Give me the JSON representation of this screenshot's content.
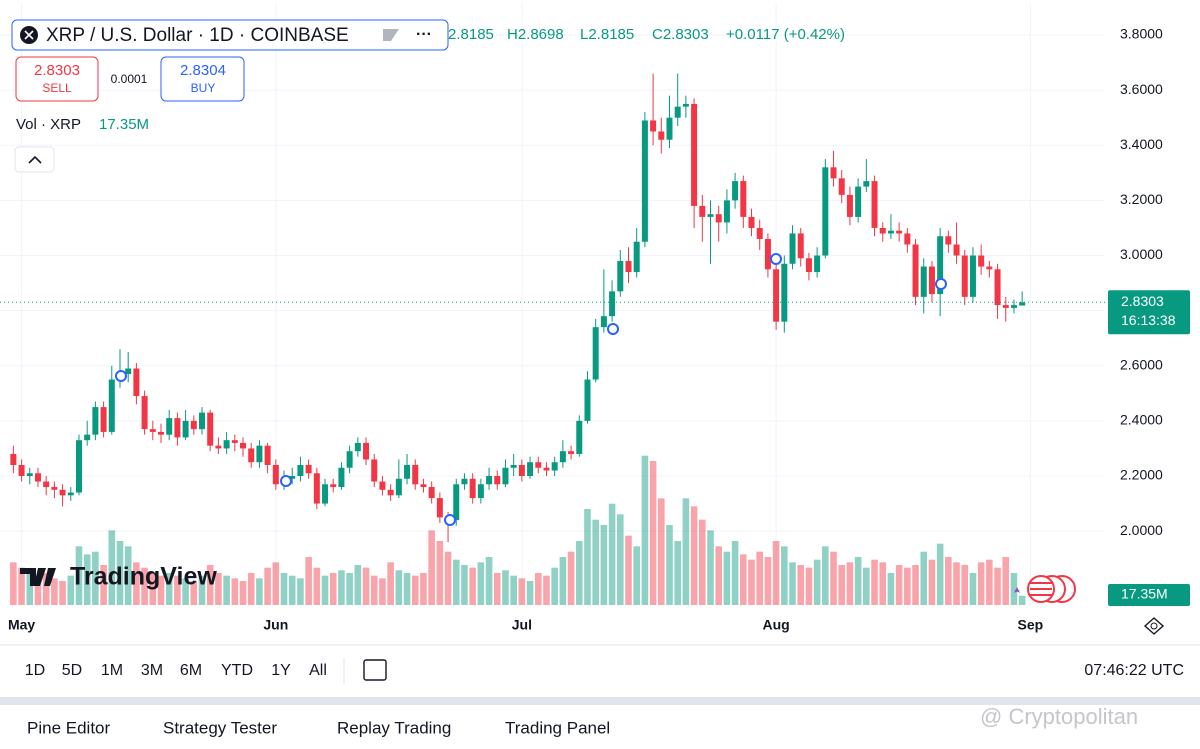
{
  "header": {
    "symbol": "XRP / U.S. Dollar · 1D · COINBASE",
    "open": "2.8185",
    "high": "H2.8698",
    "low": "L2.8185",
    "close": "C2.8303",
    "change": "+0.0117 (+0.42%)"
  },
  "trade": {
    "sell_price": "2.8303",
    "sell": "SELL",
    "spread": "0.0001",
    "buy_price": "2.8304",
    "buy": "BUY"
  },
  "volume_legend": {
    "label": "Vol · XRP",
    "value": "17.35M"
  },
  "logo": "TradingView",
  "chart_data": {
    "type": "candlestick",
    "open": [
      2.28,
      2.24,
      2.2,
      2.21,
      2.18,
      2.16,
      2.15,
      2.13,
      2.14,
      2.33,
      2.35,
      2.45,
      2.36,
      2.55,
      2.57,
      2.59,
      2.49,
      2.37,
      2.36,
      2.35,
      2.41,
      2.34,
      2.4,
      2.37,
      2.43,
      2.31,
      2.3,
      2.33,
      2.32,
      2.3,
      2.25,
      2.31,
      2.24,
      2.17,
      2.19,
      2.2,
      2.24,
      2.21,
      2.1,
      2.17,
      2.16,
      2.23,
      2.29,
      2.32,
      2.26,
      2.18,
      2.15,
      2.13,
      2.19,
      2.24,
      2.17,
      2.16,
      2.12,
      2.05,
      2.04,
      2.17,
      2.19,
      2.12,
      2.17,
      2.2,
      2.17,
      2.23,
      2.24,
      2.2,
      2.25,
      2.23,
      2.22,
      2.25,
      2.29,
      2.28,
      2.4,
      2.55,
      2.74,
      2.78,
      2.87,
      2.98,
      2.94,
      3.05,
      3.49,
      3.45,
      3.42,
      3.5,
      3.54,
      3.55,
      3.18,
      3.14,
      3.15,
      3.12,
      3.2,
      3.27,
      3.14,
      3.1,
      3.06,
      2.95,
      2.76,
      2.97,
      3.08,
      2.99,
      2.94,
      3.0,
      3.32,
      3.28,
      3.22,
      3.14,
      3.25,
      3.27,
      3.1,
      3.08,
      3.09,
      3.08,
      3.04,
      2.85,
      2.96,
      2.86,
      3.07,
      3.04,
      3.0,
      2.85,
      3.0,
      2.96,
      2.95,
      2.82,
      2.81,
      2.8185
    ],
    "high": [
      2.31,
      2.26,
      2.23,
      2.23,
      2.2,
      2.18,
      2.17,
      2.16,
      2.35,
      2.4,
      2.47,
      2.47,
      2.6,
      2.66,
      2.65,
      2.61,
      2.51,
      2.4,
      2.39,
      2.44,
      2.43,
      2.44,
      2.42,
      2.45,
      2.44,
      2.34,
      2.36,
      2.35,
      2.34,
      2.32,
      2.33,
      2.32,
      2.26,
      2.22,
      2.23,
      2.27,
      2.26,
      2.23,
      2.19,
      2.19,
      2.25,
      2.31,
      2.34,
      2.34,
      2.28,
      2.2,
      2.17,
      2.26,
      2.28,
      2.26,
      2.19,
      2.18,
      2.14,
      2.07,
      2.19,
      2.21,
      2.21,
      2.19,
      2.23,
      2.22,
      2.26,
      2.28,
      2.26,
      2.27,
      2.27,
      2.25,
      2.27,
      2.33,
      2.31,
      2.42,
      2.58,
      2.77,
      2.95,
      2.91,
      3.02,
      3.03,
      3.1,
      3.52,
      3.66,
      3.5,
      3.58,
      3.66,
      3.58,
      3.57,
      3.22,
      3.2,
      3.18,
      3.24,
      3.3,
      3.29,
      3.17,
      3.13,
      3.08,
      2.97,
      3.0,
      3.11,
      3.1,
      3.01,
      3.03,
      3.35,
      3.38,
      3.31,
      3.25,
      3.28,
      3.35,
      3.29,
      3.12,
      3.15,
      3.12,
      3.1,
      3.06,
      2.99,
      2.98,
      3.1,
      3.09,
      3.12,
      3.02,
      3.03,
      3.04,
      2.98,
      2.97,
      2.85,
      2.84,
      2.8698
    ],
    "low": [
      2.21,
      2.18,
      2.17,
      2.16,
      2.13,
      2.12,
      2.09,
      2.11,
      2.13,
      2.31,
      2.33,
      2.34,
      2.35,
      2.52,
      2.54,
      2.46,
      2.35,
      2.33,
      2.32,
      2.33,
      2.31,
      2.33,
      2.35,
      2.35,
      2.29,
      2.28,
      2.28,
      2.29,
      2.27,
      2.23,
      2.23,
      2.21,
      2.15,
      2.15,
      2.17,
      2.18,
      2.19,
      2.08,
      2.09,
      2.14,
      2.15,
      2.21,
      2.27,
      2.24,
      2.16,
      2.13,
      2.11,
      2.12,
      2.17,
      2.15,
      2.14,
      2.1,
      2.03,
      1.96,
      2.02,
      2.15,
      2.1,
      2.1,
      2.15,
      2.15,
      2.16,
      2.2,
      2.18,
      2.19,
      2.21,
      2.2,
      2.2,
      2.23,
      2.26,
      2.27,
      2.39,
      2.54,
      2.72,
      2.76,
      2.85,
      2.9,
      2.92,
      3.03,
      3.4,
      3.37,
      3.39,
      3.47,
      3.5,
      3.1,
      3.05,
      2.97,
      3.05,
      3.08,
      3.17,
      3.1,
      3.07,
      3.02,
      2.92,
      2.73,
      2.72,
      2.95,
      2.96,
      2.91,
      2.92,
      2.99,
      3.25,
      3.19,
      3.11,
      3.12,
      3.23,
      3.07,
      3.05,
      3.06,
      3.05,
      3.01,
      2.82,
      2.79,
      2.83,
      2.78,
      3.01,
      2.97,
      2.82,
      2.83,
      2.93,
      2.92,
      2.77,
      2.76,
      2.79,
      2.8185
    ],
    "close": [
      2.24,
      2.2,
      2.21,
      2.18,
      2.16,
      2.15,
      2.13,
      2.14,
      2.33,
      2.35,
      2.45,
      2.36,
      2.55,
      2.57,
      2.59,
      2.49,
      2.37,
      2.36,
      2.35,
      2.41,
      2.34,
      2.4,
      2.37,
      2.43,
      2.31,
      2.3,
      2.33,
      2.32,
      2.3,
      2.25,
      2.31,
      2.24,
      2.17,
      2.19,
      2.2,
      2.24,
      2.21,
      2.1,
      2.17,
      2.16,
      2.23,
      2.29,
      2.32,
      2.26,
      2.18,
      2.15,
      2.13,
      2.19,
      2.24,
      2.17,
      2.16,
      2.12,
      2.05,
      2.04,
      2.17,
      2.19,
      2.12,
      2.17,
      2.2,
      2.17,
      2.23,
      2.24,
      2.2,
      2.25,
      2.23,
      2.22,
      2.25,
      2.29,
      2.28,
      2.4,
      2.55,
      2.74,
      2.78,
      2.87,
      2.98,
      2.94,
      3.05,
      3.49,
      3.45,
      3.42,
      3.5,
      3.54,
      3.55,
      3.18,
      3.14,
      3.15,
      3.12,
      3.2,
      3.27,
      3.14,
      3.1,
      3.06,
      2.95,
      2.76,
      2.97,
      3.08,
      2.99,
      2.94,
      3.0,
      3.32,
      3.28,
      3.22,
      3.14,
      3.25,
      3.27,
      3.1,
      3.08,
      3.09,
      3.08,
      3.04,
      2.85,
      2.96,
      2.86,
      3.07,
      3.04,
      3.0,
      2.85,
      3.0,
      2.96,
      2.95,
      2.82,
      2.81,
      2.82,
      2.8303
    ],
    "volume": [
      80,
      70,
      60,
      55,
      60,
      50,
      45,
      55,
      110,
      95,
      100,
      75,
      140,
      120,
      110,
      80,
      70,
      60,
      55,
      60,
      55,
      50,
      45,
      55,
      75,
      60,
      55,
      50,
      45,
      60,
      50,
      70,
      80,
      60,
      55,
      50,
      90,
      70,
      55,
      60,
      65,
      60,
      75,
      70,
      55,
      50,
      80,
      65,
      60,
      55,
      60,
      140,
      120,
      100,
      85,
      75,
      70,
      80,
      90,
      60,
      65,
      55,
      50,
      45,
      60,
      55,
      70,
      90,
      100,
      120,
      180,
      160,
      150,
      190,
      170,
      130,
      110,
      280,
      270,
      200,
      150,
      120,
      200,
      185,
      160,
      140,
      110,
      100,
      120,
      95,
      85,
      100,
      90,
      120,
      110,
      80,
      75,
      70,
      85,
      110,
      100,
      75,
      80,
      90,
      70,
      85,
      80,
      60,
      75,
      70,
      75,
      100,
      85,
      115,
      90,
      80,
      75,
      60,
      80,
      85,
      70,
      90,
      60,
      17.35
    ],
    "ylim": [
      1.732,
      3.9125
    ],
    "yticks": [
      {
        "value": 2.0,
        "label": "2.0000"
      },
      {
        "value": 2.2,
        "label": "2.2000"
      },
      {
        "value": 2.4,
        "label": "2.4000"
      },
      {
        "value": 2.6,
        "label": "2.6000"
      },
      {
        "value": 2.8,
        "label": "2.8000"
      },
      {
        "value": 3.0,
        "label": "3.0000"
      },
      {
        "value": 3.2,
        "label": "3.2000"
      },
      {
        "value": 3.4,
        "label": "3.4000"
      },
      {
        "value": 3.6,
        "label": "3.6000"
      },
      {
        "value": 3.8,
        "label": "3.8000"
      }
    ],
    "xlim": [
      -1.63,
      133.1
    ],
    "xticks": [
      {
        "value": 1,
        "label": "May"
      },
      {
        "value": 32,
        "label": "Jun"
      },
      {
        "value": 62,
        "label": "Jul"
      },
      {
        "value": 93,
        "label": "Aug"
      },
      {
        "value": 124,
        "label": "Sep"
      }
    ],
    "vlim": [
      0,
      300
    ],
    "up_color": "#089981",
    "down_color": "#f23645",
    "last_price_label": "2.8303",
    "countdown": "16:13:38",
    "volume_label": "17.35M"
  },
  "timeframes": [
    "1D",
    "5D",
    "1M",
    "3M",
    "6M",
    "YTD",
    "1Y",
    "All"
  ],
  "clock": "07:46:22 UTC",
  "tabs": [
    "Pine Editor",
    "Strategy Tester",
    "Replay Trading",
    "Trading Panel"
  ],
  "watermark": "@ Cryptopolitan"
}
